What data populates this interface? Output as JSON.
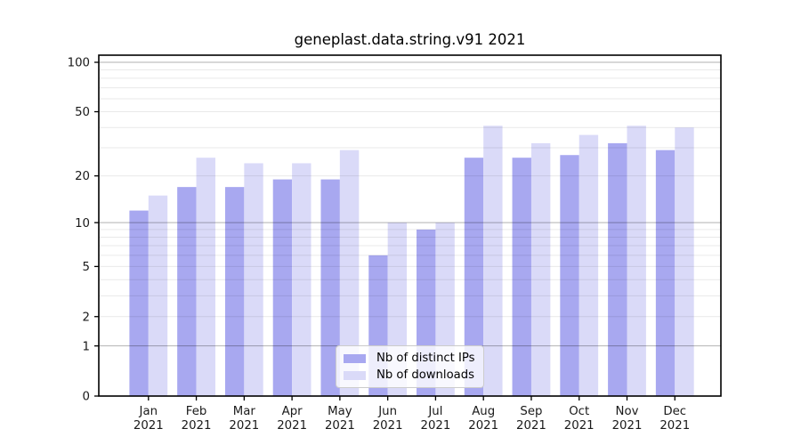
{
  "title": "geneplast.data.string.v91 2021",
  "chart_data": {
    "type": "bar",
    "title": "geneplast.data.string.v91 2021",
    "categories": [
      "Jan",
      "Feb",
      "Mar",
      "Apr",
      "May",
      "Jun",
      "Jul",
      "Aug",
      "Sep",
      "Oct",
      "Nov",
      "Dec"
    ],
    "year_label": "2021",
    "series": [
      {
        "name": "Nb of distinct IPs",
        "color": "#a8a8f0",
        "values": [
          12,
          17,
          17,
          19,
          19,
          6,
          9,
          26,
          26,
          27,
          32,
          29
        ]
      },
      {
        "name": "Nb of downloads",
        "color": "#dadaf8",
        "values": [
          15,
          26,
          24,
          24,
          29,
          10,
          10,
          41,
          32,
          36,
          41,
          40
        ]
      }
    ],
    "y_scale": "log1p",
    "y_ticks": [
      0,
      1,
      2,
      5,
      10,
      20,
      50,
      100
    ],
    "ylim": [
      0,
      110
    ],
    "grid": {
      "major": [
        1,
        10,
        100
      ],
      "minor": [
        2,
        3,
        4,
        5,
        6,
        7,
        8,
        9,
        20,
        30,
        40,
        50,
        60,
        70,
        80,
        90
      ]
    },
    "legend_position": "lower center",
    "xlabel": "",
    "ylabel": ""
  },
  "colors": {
    "background": "#ffffff",
    "axis_frame": "#000000",
    "tick_label": "#1a1a1a",
    "grid_major": "rgba(0,0,0,0.30)",
    "grid_minor": "rgba(0,0,0,0.085)"
  }
}
